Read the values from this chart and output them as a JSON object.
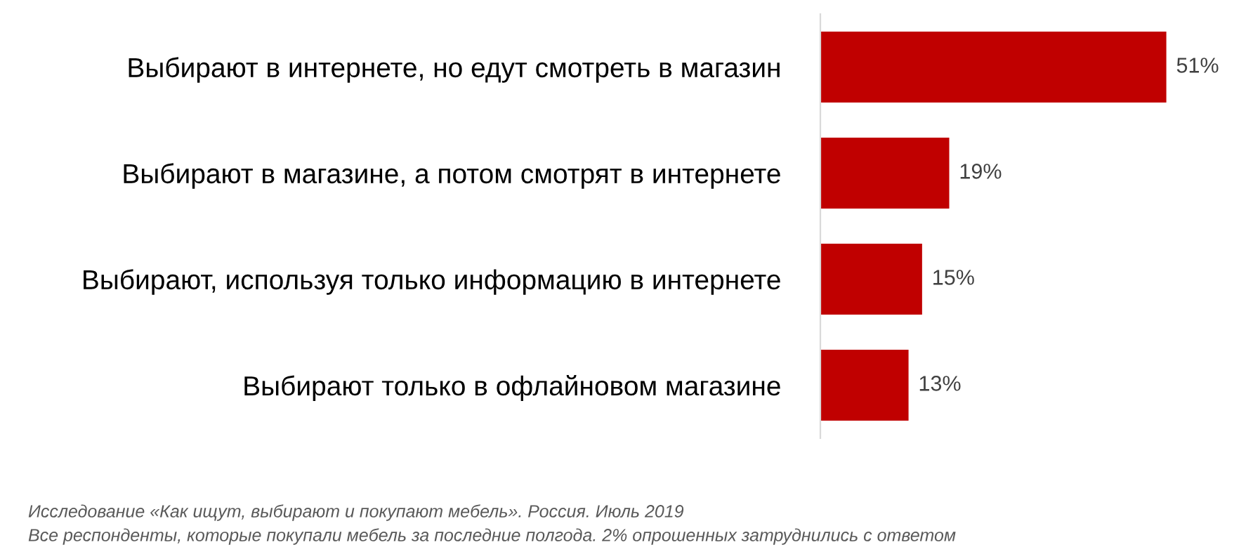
{
  "chart_data": {
    "type": "bar",
    "orientation": "horizontal",
    "categories": [
      "Выбирают в интернете, но едут смотреть в магазин",
      "Выбирают в магазине, а потом смотрят в интернете",
      "Выбирают, используя только информацию в интернете",
      "Выбирают только в офлайновом магазине"
    ],
    "values": [
      51,
      19,
      15,
      13
    ],
    "value_labels": [
      "51%",
      "19%",
      "15%",
      "13%"
    ],
    "color": "#c00000",
    "grid": false,
    "legend": false,
    "annotations": [
      "Исследование «Как ищут, выбирают и покупают мебель». Россия. Июль 2019",
      "Все респонденты, которые покупали мебель за последние полгода. 2% опрошенных затруднились с ответом"
    ]
  }
}
